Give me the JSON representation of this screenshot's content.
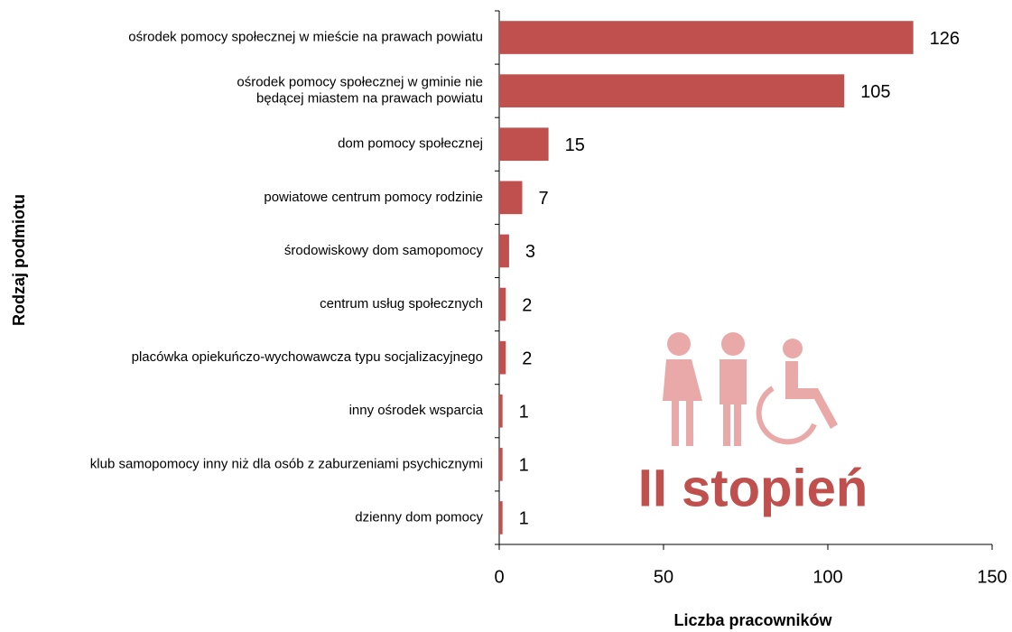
{
  "chart_data": {
    "type": "bar",
    "orientation": "horizontal",
    "categories": [
      "ośrodek pomocy społecznej w mieście na prawach powiatu",
      "ośrodek pomocy społecznej w gminie nie\nbędącej miastem na prawach powiatu",
      "dom pomocy społecznej",
      "powiatowe centrum pomocy rodzinie",
      "środowiskowy dom samopomocy",
      "centrum usług społecznych",
      "placówka opiekuńczo-wychowawcza typu socjalizacyjnego",
      "inny ośrodek wsparcia",
      "klub samopomocy inny niż dla osób z zaburzeniami psychicznymi",
      "dzienny dom pomocy"
    ],
    "values": [
      126,
      105,
      15,
      7,
      3,
      2,
      2,
      1,
      1,
      1
    ],
    "color": "#c0504d",
    "xlim": [
      0,
      150
    ],
    "xticks": [
      0,
      50,
      100,
      150
    ],
    "xlabel": "Liczba pracowników",
    "ylabel": "Rodzaj podmiotu",
    "annotation": "II stopień"
  }
}
